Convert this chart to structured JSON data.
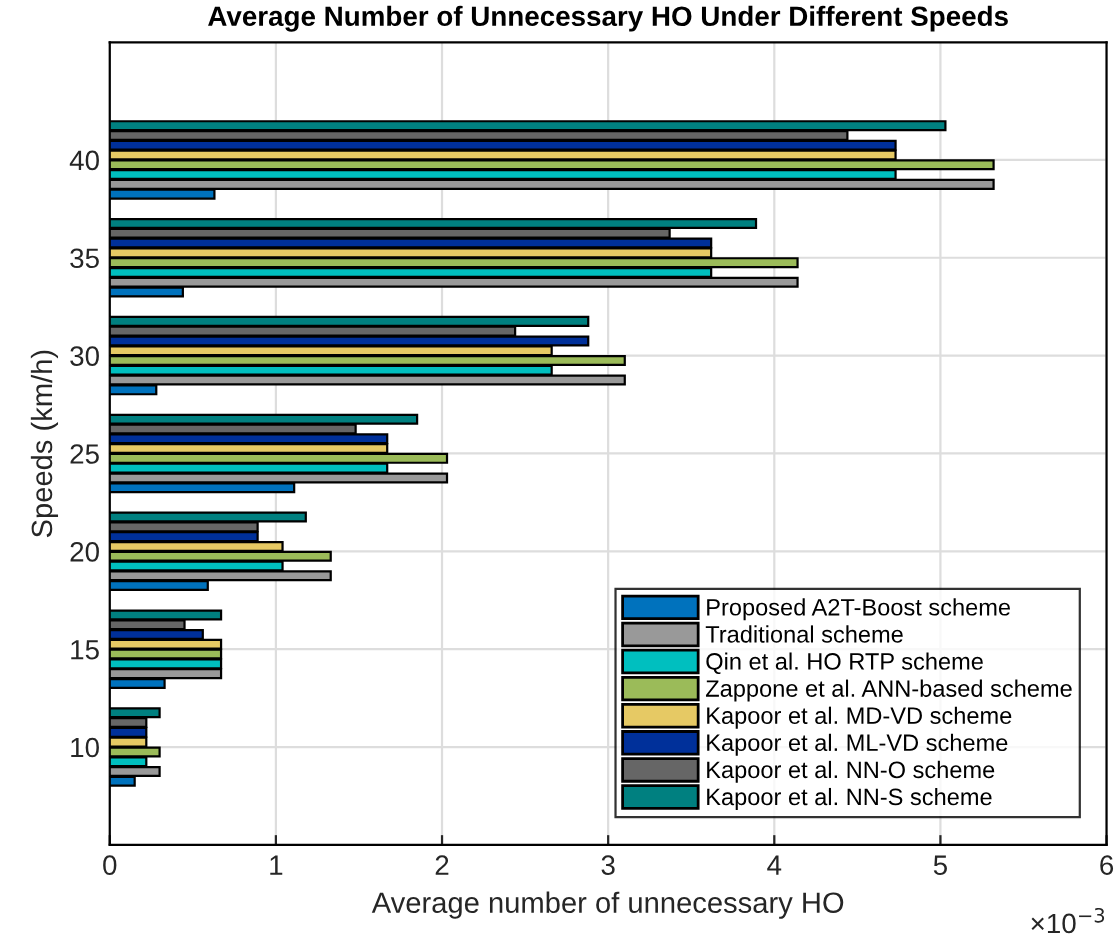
{
  "chart_data": {
    "type": "bar",
    "orientation": "horizontal",
    "title": "Average Number of Unnecessary HO Under Different Speeds",
    "xlabel": "Average number of unnecessary HO",
    "ylabel": "Speeds (km/h)",
    "x": [
      10,
      15,
      20,
      25,
      30,
      35,
      40
    ],
    "series": [
      {
        "name": "Proposed A2T-Boost scheme",
        "color": "#0072bd",
        "values": [
          0.15,
          0.33,
          0.59,
          1.11,
          0.28,
          0.44,
          0.63
        ]
      },
      {
        "name": "Traditional scheme",
        "color": "#999999",
        "values": [
          0.3,
          0.67,
          1.33,
          2.03,
          3.1,
          4.14,
          5.32
        ]
      },
      {
        "name": "Qin et al. HO RTP scheme",
        "color": "#00bfbf",
        "values": [
          0.22,
          0.67,
          1.04,
          1.67,
          2.66,
          3.62,
          4.73
        ]
      },
      {
        "name": "Zappone et al. ANN-based scheme",
        "color": "#9bbb59",
        "values": [
          0.3,
          0.67,
          1.33,
          2.03,
          3.1,
          4.14,
          5.32
        ]
      },
      {
        "name": "Kapoor et al. MD-VD scheme",
        "color": "#e6c964",
        "values": [
          0.22,
          0.67,
          1.04,
          1.67,
          2.66,
          3.62,
          4.73
        ]
      },
      {
        "name": "Kapoor et al. ML-VD scheme",
        "color": "#00309a",
        "values": [
          0.22,
          0.56,
          0.89,
          1.67,
          2.88,
          3.62,
          4.73
        ]
      },
      {
        "name": "Kapoor et al. NN-O scheme",
        "color": "#666666",
        "values": [
          0.22,
          0.45,
          0.89,
          1.48,
          2.44,
          3.37,
          4.44
        ]
      },
      {
        "name": "Kapoor et al. NN-S scheme",
        "color": "#008080",
        "values": [
          0.3,
          0.67,
          1.18,
          1.85,
          2.88,
          3.89,
          5.03
        ]
      }
    ],
    "xlim": [
      0,
      6
    ],
    "xticks": [
      0,
      1,
      2,
      3,
      4,
      5,
      6
    ],
    "ylim": [
      5,
      46
    ],
    "yticks": [
      10,
      15,
      20,
      25,
      30,
      35,
      40
    ],
    "annotations": [
      "×10$^{−3}$"
    ],
    "grid": true,
    "legend": "bottom right"
  }
}
